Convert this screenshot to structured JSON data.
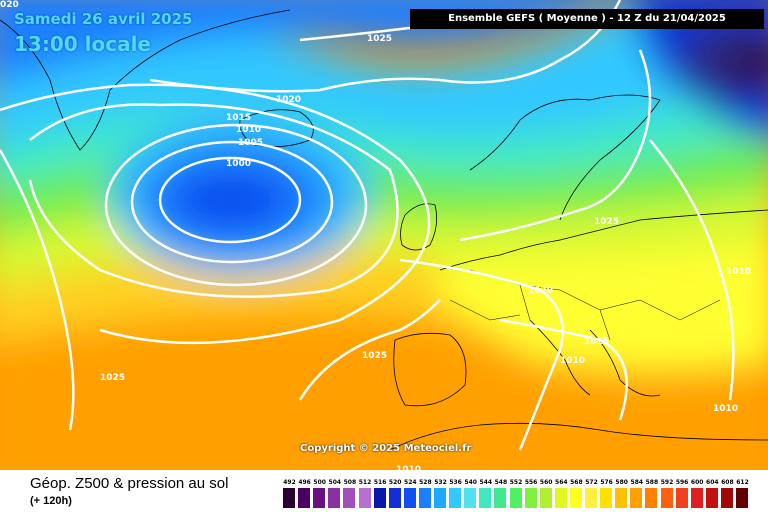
{
  "header": {
    "corner_value": "020",
    "date": "Samedi 26 avril 2025",
    "local_time": "13:00 locale",
    "run_info": "Ensemble GEFS  ( Moyenne )  -  12 Z du 21/04/2025"
  },
  "copyright": "Copyright © 2025 Meteociel.fr",
  "footer": {
    "product": "Géop. Z500 & pression au sol",
    "lead": "(+ 120h)"
  },
  "isobar_labels": [
    "1025",
    "1020",
    "1015",
    "1010",
    "1005",
    "1000",
    "1025",
    "1010",
    "1020",
    "1015",
    "1025",
    "1025",
    "1010",
    "1010",
    "1010"
  ],
  "legend": {
    "values": [
      "492",
      "496",
      "500",
      "504",
      "508",
      "512",
      "516",
      "520",
      "524",
      "528",
      "532",
      "536",
      "540",
      "544",
      "548",
      "552",
      "556",
      "560",
      "564",
      "568",
      "572",
      "576",
      "580",
      "584",
      "588",
      "592",
      "596",
      "600",
      "604",
      "608",
      "612"
    ],
    "colors": [
      "#2a0030",
      "#4a0060",
      "#6a1080",
      "#8a30a0",
      "#a050b8",
      "#b870d0",
      "#0818a8",
      "#1030d0",
      "#1050f0",
      "#1a80ff",
      "#20a8ff",
      "#30c8ff",
      "#50e0f0",
      "#40e8c0",
      "#40e890",
      "#50f060",
      "#80f040",
      "#b0f030",
      "#e0f820",
      "#ffff20",
      "#fff040",
      "#ffe000",
      "#ffc000",
      "#ffa000",
      "#ff8000",
      "#ff6010",
      "#f04020",
      "#e02020",
      "#c01010",
      "#a00808",
      "#600000"
    ]
  }
}
